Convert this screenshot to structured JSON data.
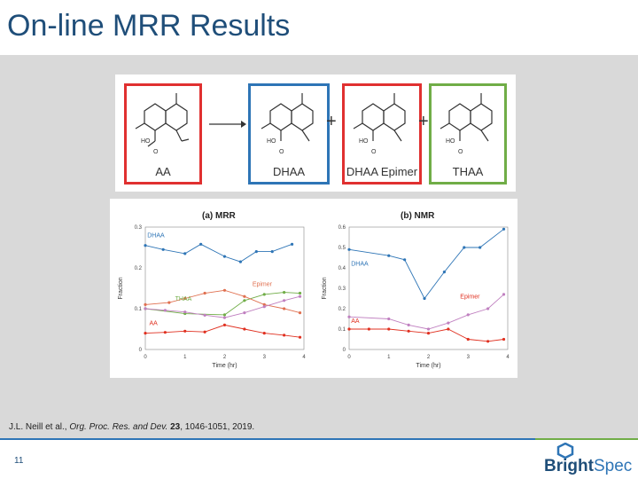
{
  "slide": {
    "title": "On-line MRR Results",
    "page_number": "11",
    "citation_prefix": "J.L. Neill et al., ",
    "citation_journal": "Org. Proc. Res. and Dev.",
    "citation_volume": "23",
    "citation_suffix": ", 1046-1051, 2019.",
    "logo_bright": "Bright",
    "logo_spec": "Spec",
    "rule_colors": [
      "#2e75b6",
      "#70ad47"
    ]
  },
  "reaction": {
    "compounds": [
      {
        "label": "AA",
        "color": "#e03030"
      },
      {
        "label": "DHAA",
        "color": "#2e75b6"
      },
      {
        "label": "DHAA Epimer",
        "color": "#e03030"
      },
      {
        "label": "THAA",
        "color": "#70ad47"
      }
    ],
    "plus": "+"
  },
  "chart_data": [
    {
      "type": "line",
      "title": "(a) MRR",
      "xlabel": "Time (hr)",
      "ylabel": "Fraction",
      "xlim": [
        0,
        4
      ],
      "ylim": [
        0,
        0.3
      ],
      "xticks": [
        "0",
        "1",
        "2",
        "3",
        "4"
      ],
      "yticks": [
        "0",
        "0.1",
        "0.2",
        "0.3"
      ],
      "series": [
        {
          "name": "DHAA",
          "color": "#2e75b6",
          "x": [
            0.0,
            0.45,
            1.0,
            1.4,
            2.0,
            2.4,
            2.8,
            3.2,
            3.7
          ],
          "y": [
            0.255,
            0.245,
            0.235,
            0.258,
            0.228,
            0.215,
            0.24,
            0.24,
            0.258
          ]
        },
        {
          "name": "THAA",
          "color": "#70ad47",
          "x": [
            0.0,
            1.0,
            2.0,
            2.5,
            3.0,
            3.5,
            3.9
          ],
          "y": [
            0.1,
            0.088,
            0.085,
            0.12,
            0.135,
            0.14,
            0.138
          ]
        },
        {
          "name": "Epimer",
          "color": "#e07050",
          "x": [
            0.0,
            0.6,
            1.0,
            1.5,
            2.0,
            2.5,
            3.0,
            3.5,
            3.9
          ],
          "y": [
            0.11,
            0.115,
            0.125,
            0.138,
            0.145,
            0.13,
            0.11,
            0.1,
            0.09
          ]
        },
        {
          "name": "THAA (pink)",
          "color": "#c080c0",
          "x": [
            0.0,
            0.5,
            1.0,
            1.5,
            2.0,
            2.5,
            3.0,
            3.5,
            3.9
          ],
          "y": [
            0.1,
            0.096,
            0.092,
            0.084,
            0.078,
            0.09,
            0.105,
            0.12,
            0.13
          ]
        },
        {
          "name": "AA",
          "color": "#e03020",
          "x": [
            0.0,
            0.5,
            1.0,
            1.5,
            2.0,
            2.5,
            3.0,
            3.5,
            3.9
          ],
          "y": [
            0.04,
            0.042,
            0.045,
            0.043,
            0.06,
            0.05,
            0.04,
            0.035,
            0.03
          ]
        }
      ]
    },
    {
      "type": "line",
      "title": "(b) NMR",
      "xlabel": "Time (hr)",
      "ylabel": "Fraction",
      "xlim": [
        0,
        4
      ],
      "ylim": [
        0,
        0.6
      ],
      "xticks": [
        "0",
        "1",
        "2",
        "3",
        "4"
      ],
      "yticks": [
        "0",
        "0.1",
        "0.2",
        "0.3",
        "0.4",
        "0.5",
        "0.6"
      ],
      "series": [
        {
          "name": "DHAA",
          "color": "#2e75b6",
          "x": [
            0.0,
            1.0,
            1.4,
            1.9,
            2.4,
            2.9,
            3.3,
            3.9
          ],
          "y": [
            0.49,
            0.46,
            0.44,
            0.25,
            0.38,
            0.5,
            0.5,
            0.59
          ]
        },
        {
          "name": "Epimer",
          "color": "#c080c0",
          "x": [
            0.0,
            1.0,
            1.5,
            2.0,
            2.5,
            3.0,
            3.5,
            3.9
          ],
          "y": [
            0.16,
            0.15,
            0.12,
            0.1,
            0.13,
            0.17,
            0.2,
            0.27
          ]
        },
        {
          "name": "AA",
          "color": "#e03020",
          "x": [
            0.0,
            0.5,
            1.0,
            1.5,
            2.0,
            2.5,
            3.0,
            3.5,
            3.9
          ],
          "y": [
            0.1,
            0.1,
            0.1,
            0.09,
            0.08,
            0.1,
            0.05,
            0.04,
            0.05
          ]
        }
      ],
      "annotations": [
        "DHAA",
        "Epimer",
        "AA"
      ]
    }
  ],
  "chart_labels": {
    "a_dhaa": "DHAA",
    "a_thaa": "THAA",
    "a_epimer": "Epimer",
    "a_aa": "AA",
    "b_dhaa": "DHAA",
    "b_epimer": "Epimer",
    "b_aa": "AA"
  }
}
